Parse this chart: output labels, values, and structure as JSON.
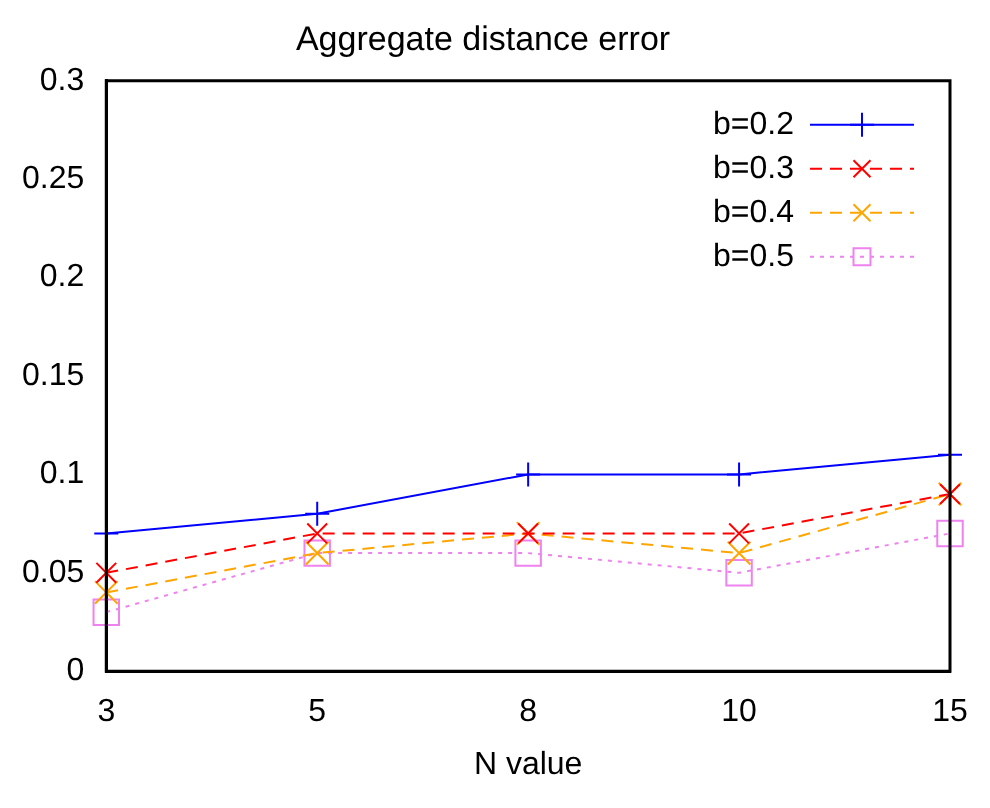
{
  "chart_data": {
    "type": "line",
    "title": "Aggregate distance error",
    "xlabel": "N value",
    "categories": [
      "3",
      "5",
      "8",
      "10",
      "15"
    ],
    "ylim": [
      0,
      0.3
    ],
    "yticks": [
      0,
      0.05,
      0.1,
      0.15,
      0.2,
      0.25,
      0.3
    ],
    "grid": false,
    "legend": "top right",
    "series": [
      {
        "name": "b=0.2",
        "color": "#0000ff",
        "marker": "plus",
        "line_style": "solid",
        "values": [
          0.07,
          0.08,
          0.1,
          0.1,
          0.11
        ]
      },
      {
        "name": "b=0.3",
        "color": "#ff0000",
        "marker": "cross",
        "line_style": "dashed",
        "values": [
          0.05,
          0.07,
          0.07,
          0.07,
          0.09
        ]
      },
      {
        "name": "b=0.4",
        "color": "#ffa500",
        "marker": "cross",
        "line_style": "dashed",
        "values": [
          0.04,
          0.06,
          0.07,
          0.06,
          0.09
        ]
      },
      {
        "name": "b=0.5",
        "color": "#ee82ee",
        "marker": "square",
        "line_style": "dotted",
        "values": [
          0.03,
          0.06,
          0.06,
          0.05,
          0.07
        ]
      }
    ]
  }
}
